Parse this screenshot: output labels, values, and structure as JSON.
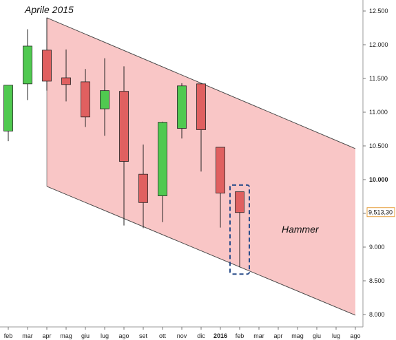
{
  "chart_data": {
    "type": "candlestick",
    "title": "",
    "y_axis": {
      "position": "right",
      "range": [
        8000,
        12700
      ],
      "ticks": [
        8000,
        8500,
        9000,
        9500,
        10000,
        10500,
        11000,
        11500,
        12000,
        12500
      ],
      "tick_labels": [
        "8.000",
        "8.500",
        "9.000",
        "9.500",
        "10.000",
        "10.500",
        "11.000",
        "11.500",
        "12.000",
        "12.500"
      ],
      "bold_ticks": [
        "10.000"
      ]
    },
    "x_axis": {
      "labels": [
        "feb",
        "mar",
        "apr",
        "mag",
        "giu",
        "lug",
        "ago",
        "set",
        "ott",
        "nov",
        "dic",
        "2016",
        "feb",
        "mar",
        "apr",
        "mag",
        "giu",
        "lug",
        "ago"
      ],
      "bold_labels": [
        "2016"
      ]
    },
    "candles": [
      {
        "label": "feb",
        "open": 10720,
        "high": 11400,
        "low": 10570,
        "close": 11400
      },
      {
        "label": "mar",
        "open": 11420,
        "high": 12230,
        "low": 11180,
        "close": 11980
      },
      {
        "label": "apr",
        "open": 11920,
        "high": 12400,
        "low": 11320,
        "close": 11460
      },
      {
        "label": "mag",
        "open": 11510,
        "high": 11930,
        "low": 11160,
        "close": 11410
      },
      {
        "label": "giu",
        "open": 11450,
        "high": 11640,
        "low": 10780,
        "close": 10930
      },
      {
        "label": "lug",
        "open": 11050,
        "high": 11800,
        "low": 10650,
        "close": 11320
      },
      {
        "label": "ago",
        "open": 11310,
        "high": 11680,
        "low": 9320,
        "close": 10270
      },
      {
        "label": "set",
        "open": 10080,
        "high": 10520,
        "low": 9280,
        "close": 9660
      },
      {
        "label": "ott",
        "open": 9760,
        "high": 10860,
        "low": 9370,
        "close": 10850
      },
      {
        "label": "nov",
        "open": 10760,
        "high": 11430,
        "low": 10610,
        "close": 11390
      },
      {
        "label": "dic",
        "open": 11420,
        "high": 11430,
        "low": 10120,
        "close": 10740
      },
      {
        "label": "2016",
        "open": 10480,
        "high": 10480,
        "low": 9290,
        "close": 9800
      },
      {
        "label": "feb",
        "open": 9820,
        "high": 9820,
        "low": 8700,
        "close": 9513
      }
    ],
    "channel": {
      "upper": {
        "from_label": "apr",
        "from_value": 12400,
        "to_label": "ago",
        "to_value": 10460
      },
      "lower": {
        "from_label": "apr",
        "from_value": 9900,
        "to_label": "ago",
        "to_value": 7990
      }
    },
    "last_price": {
      "label": "9,513,30",
      "value": 9513
    },
    "highlight": {
      "label": "feb",
      "low": 8600,
      "high": 9920
    },
    "annotations": [
      {
        "text": "Aprile 2015"
      },
      {
        "text": "Hammer"
      }
    ],
    "colors": {
      "up": "#50c950",
      "down": "#e06060",
      "channel_fill": "#f9c6c6",
      "channel_line": "#4a4a4a",
      "highlight_border": "#2a4d8a",
      "price_box_border": "#e6a040"
    },
    "grid": false,
    "legend": "none"
  }
}
